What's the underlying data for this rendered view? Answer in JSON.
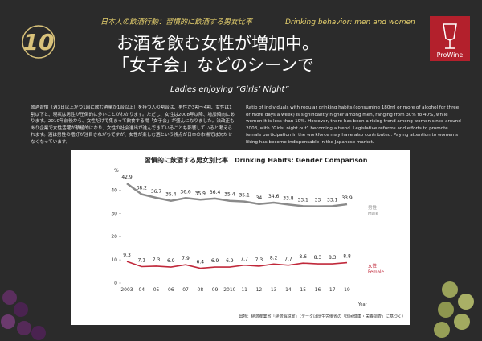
{
  "header": {
    "number": "10",
    "kicker_ja": "日本人の飲酒行動：習慣的に飲酒する男女比率",
    "kicker_en": "Drinking behavior: men and women",
    "title_lines": [
      "お酒を飲む女性が増加中。",
      "「女子会」などのシーンで"
    ],
    "subtitle": "Ladies enjoying “Girls’ Night”",
    "logo": "ProWine"
  },
  "body": {
    "ja": "飲酒習慣（週3日以上かつ1回に飲む酒量が1合以上）を持つ人の割合は、男性が3割〜4割、女性は1割以下と、現状は男性が圧倒的に多いことがわかります。ただし、女性は2008年以降、増加傾向にあります。2010年前後から、女性だけで集まって飲食する場「女子会」が盛んになりました。法改正もあり企業で女性活躍が積極的になり、女性の社会進出が進んできていることも影響していると考えられます。酒は男性の嗜好が注目されがちですが、女性が楽しむ酒という視点が日本の市場では欠かせなくなっています。",
    "en": "Ratio of individuals with regular drinking habits (consuming 180ml or more of alcohol for three or more days a week) is significantly higher among men, ranging from 30% to 40%, while women it is less than 10%. However, there has been a rising trend among women since around 2008, with “Girls’ night out” becoming a trend. Legislative reforms and efforts to promote female participation in the workforce may have also contributed. Paying attention to women’s liking has become indispensable in the Japanese market."
  },
  "chart_data": {
    "type": "line",
    "title": "習慣的に飲酒する男女別比率",
    "title_en": "Drinking Habits: Gender Comparison",
    "y_unit": "%",
    "x_label": "Year",
    "categories": [
      "2003",
      "04",
      "05",
      "06",
      "07",
      "08",
      "09",
      "2010",
      "11",
      "12",
      "13",
      "14",
      "15",
      "16",
      "17",
      "19"
    ],
    "series": [
      {
        "name": "男性",
        "name_en": "Male",
        "color": "#8a8a8a",
        "values": [
          42.9,
          38.2,
          36.7,
          35.4,
          36.6,
          35.9,
          36.4,
          35.4,
          35.1,
          34,
          34.6,
          33.8,
          33.1,
          33,
          33.1,
          33.9
        ]
      },
      {
        "name": "女性",
        "name_en": "Female",
        "color": "#c0283a",
        "values": [
          9.3,
          7.1,
          7.3,
          6.9,
          7.9,
          6.4,
          6.9,
          6.9,
          7.7,
          7.3,
          8.2,
          7.7,
          8.6,
          8.3,
          8.3,
          8.8
        ]
      }
    ],
    "ylim": [
      0,
      45
    ],
    "yticks": [
      0,
      10,
      20,
      30,
      40
    ],
    "source": "出所：経済産業省「経済解説室」（データは厚生労働省の「国民健康・栄養調査」に基づく）"
  }
}
